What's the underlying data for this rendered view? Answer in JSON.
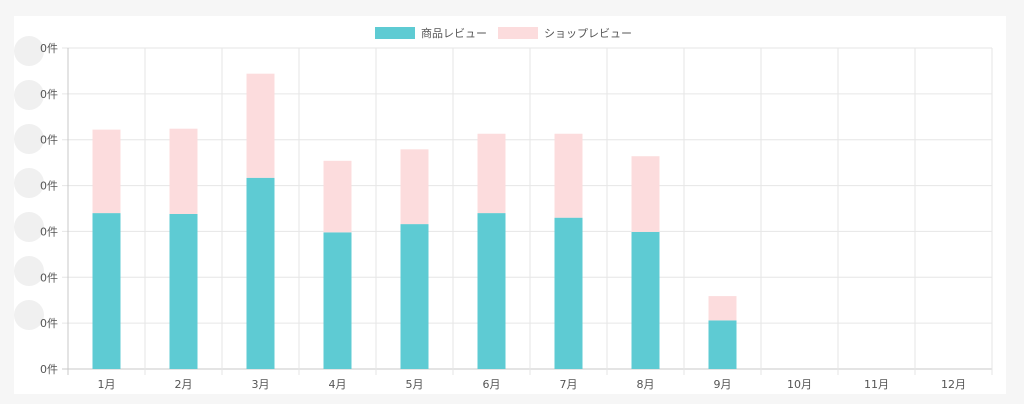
{
  "colors": {
    "product_review": "#5ecbd3",
    "shop_review": "#fcdcdd",
    "grid": "#e6e6e6",
    "axis": "#c8c8c8"
  },
  "chart_data": {
    "type": "bar",
    "stacked": true,
    "categories": [
      "1月",
      "2月",
      "3月",
      "4月",
      "5月",
      "6月",
      "7月",
      "8月",
      "9月",
      "10月",
      "11月",
      "12月"
    ],
    "series": [
      {
        "name": "商品レビュー",
        "values": [
          3.4,
          3.38,
          4.17,
          2.98,
          3.16,
          3.4,
          3.3,
          2.99,
          1.06,
          0,
          0,
          0
        ]
      },
      {
        "name": "ショップレビュー",
        "values": [
          1.82,
          1.86,
          2.27,
          1.56,
          1.63,
          1.73,
          1.83,
          1.65,
          0.53,
          0,
          0,
          0
        ]
      }
    ],
    "y_ticks": [
      "0件",
      "0件",
      "0件",
      "0件",
      "0件",
      "0件",
      "0件",
      "0件"
    ],
    "ylim": [
      0,
      7
    ],
    "grid": true,
    "legend_position": "top-center"
  }
}
